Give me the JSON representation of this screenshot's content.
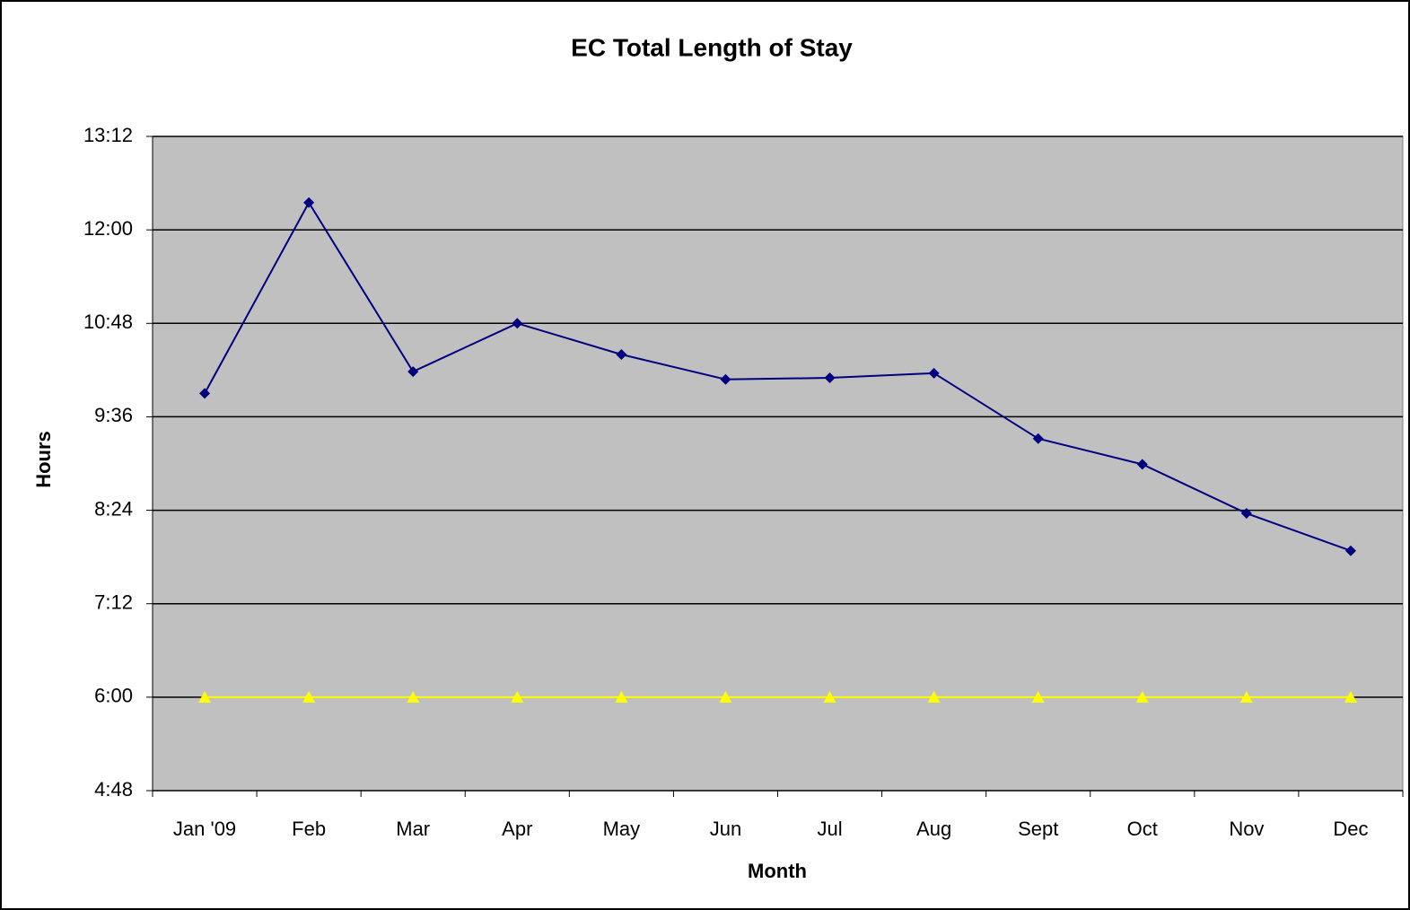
{
  "chart_data": {
    "type": "line",
    "title": "EC Total Length of Stay",
    "xlabel": "Month",
    "ylabel": "Hours",
    "categories": [
      "Jan '09",
      "Feb",
      "Mar",
      "Apr",
      "May",
      "Jun",
      "Jul",
      "Aug",
      "Sept",
      "Oct",
      "Nov",
      "Dec"
    ],
    "series": [
      {
        "color": "#000080",
        "marker": "diamond",
        "values": [
          9.9,
          12.35,
          10.18,
          10.8,
          10.4,
          10.08,
          10.1,
          10.16,
          9.32,
          8.99,
          8.36,
          7.88
        ]
      },
      {
        "color": "#ffff00",
        "marker": "triangle",
        "values": [
          6,
          6,
          6,
          6,
          6,
          6,
          6,
          6,
          6,
          6,
          6,
          6
        ]
      }
    ],
    "ylim": [
      4.8,
      13.2
    ],
    "yticks": [
      {
        "value": 4.8,
        "label": "4:48"
      },
      {
        "value": 6,
        "label": "6:00"
      },
      {
        "value": 7.2,
        "label": "7:12"
      },
      {
        "value": 8.4,
        "label": "8:24"
      },
      {
        "value": 9.6,
        "label": "9:36"
      },
      {
        "value": 10.8,
        "label": "10:48"
      },
      {
        "value": 12,
        "label": "12:00"
      },
      {
        "value": 13.2,
        "label": "13:12"
      }
    ],
    "grid": true,
    "plot_background": "#c0c0c0"
  }
}
